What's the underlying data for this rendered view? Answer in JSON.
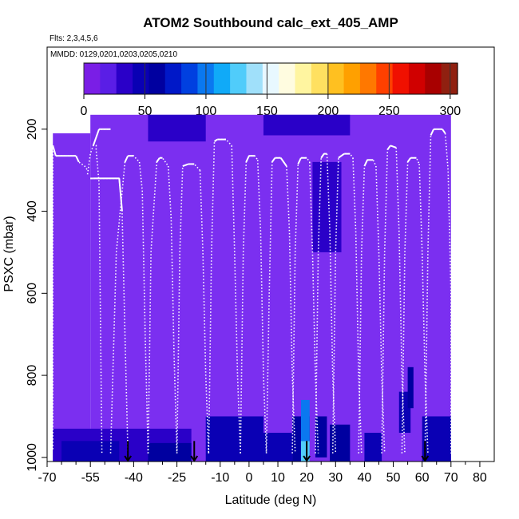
{
  "chart_data": {
    "type": "heatmap",
    "title": "ATOM2 Southbound calc_ext_405_AMP",
    "subtitle_flights": "Flts: 2,3,4,5,6",
    "subtitle_dates": "MMDD: 0129,0201,0203,0205,0210",
    "xlabel": "Latitude (deg N)",
    "ylabel": "PSXC (mbar)",
    "xlim": [
      -70,
      85
    ],
    "ylim": [
      1010,
      0
    ],
    "y_reversed": true,
    "x_ticks": [
      -70,
      -55,
      -40,
      -25,
      -10,
      0,
      10,
      20,
      30,
      40,
      50,
      60,
      70,
      80
    ],
    "x_tick_labels": [
      "-70",
      "-55",
      "-40",
      "-25",
      "-10",
      "0",
      "10",
      "20",
      "30",
      "40",
      "50",
      "60",
      "70",
      "80"
    ],
    "x_minor_ticks": [
      -65,
      -60,
      -50,
      -45,
      -35,
      -30,
      -20,
      -15,
      -5,
      5,
      15,
      25,
      35,
      45,
      55,
      65,
      75
    ],
    "y_ticks": [
      200,
      400,
      600,
      800,
      1000
    ],
    "y_tick_labels": [
      "200",
      "400",
      "600",
      "800",
      "1000"
    ],
    "colorbar": {
      "min": 0,
      "max": 306,
      "ticks": [
        0,
        50,
        100,
        150,
        200,
        250,
        300
      ],
      "tick_labels": [
        "0",
        "50",
        "100",
        "150",
        "200",
        "250",
        "300"
      ],
      "colors": [
        "#7a1ee6",
        "#5a1ee6",
        "#2a00c8",
        "#0a00b4",
        "#0000a0",
        "#0018c8",
        "#0040e0",
        "#0a78f0",
        "#10aaf8",
        "#50ccfa",
        "#a0e0fa",
        "#e8f8ff",
        "#fffce0",
        "#fff5a0",
        "#ffe060",
        "#ffc020",
        "#ffa000",
        "#ff7800",
        "#ff4000",
        "#f01000",
        "#d00000",
        "#a80000",
        "#902010"
      ]
    },
    "background_color": "#7b2ff0",
    "shade_regions": [
      {
        "x": [
          -68,
          -55
        ],
        "p": [
          210,
          1010
        ],
        "v": 20
      },
      {
        "x": [
          -55,
          70
        ],
        "p": [
          165,
          1010
        ],
        "v": 20
      },
      {
        "x": [
          -35,
          -15
        ],
        "p": [
          165,
          230
        ],
        "v": 35
      },
      {
        "x": [
          5,
          35
        ],
        "p": [
          165,
          215
        ],
        "v": 30
      },
      {
        "x": [
          22,
          32
        ],
        "p": [
          280,
          500
        ],
        "v": 28
      },
      {
        "x": [
          -68,
          -20
        ],
        "p": [
          930,
          1010
        ],
        "v": 35
      },
      {
        "x": [
          -65,
          -45
        ],
        "p": [
          960,
          1010
        ],
        "v": 50
      },
      {
        "x": [
          -35,
          -20
        ],
        "p": [
          965,
          1010
        ],
        "v": 55
      },
      {
        "x": [
          -15,
          5
        ],
        "p": [
          900,
          1010
        ],
        "v": 40
      },
      {
        "x": [
          5,
          15
        ],
        "p": [
          940,
          1010
        ],
        "v": 50
      },
      {
        "x": [
          15,
          21
        ],
        "p": [
          900,
          1010
        ],
        "v": 60
      },
      {
        "x": [
          18,
          21
        ],
        "p": [
          860,
          960
        ],
        "v": 105
      },
      {
        "x": [
          18,
          21
        ],
        "p": [
          960,
          1010
        ],
        "v": 120
      },
      {
        "x": [
          23,
          27
        ],
        "p": [
          900,
          1000
        ],
        "v": 60
      },
      {
        "x": [
          28,
          35
        ],
        "p": [
          920,
          1010
        ],
        "v": 55
      },
      {
        "x": [
          40,
          46
        ],
        "p": [
          940,
          1010
        ],
        "v": 40
      },
      {
        "x": [
          52,
          56
        ],
        "p": [
          840,
          940
        ],
        "v": 45
      },
      {
        "x": [
          55,
          57
        ],
        "p": [
          780,
          880
        ],
        "v": 55
      },
      {
        "x": [
          60,
          70
        ],
        "p": [
          900,
          1010
        ],
        "v": 40
      }
    ],
    "flight_profiles": [
      {
        "x": [
          -68,
          -68,
          -67,
          -63,
          -60,
          -59,
          -57,
          -56
        ],
        "p": [
          980,
          240,
          265,
          265,
          265,
          280,
          290,
          300
        ],
        "solid": [
          1,
          2,
          3,
          4
        ]
      },
      {
        "x": [
          -56,
          -55,
          -54,
          -53,
          -53,
          -52,
          -51
        ],
        "p": [
          310,
          260,
          240,
          240,
          250,
          330,
          990
        ],
        "solid": []
      },
      {
        "x": [
          -54,
          -52,
          -48,
          -48
        ],
        "p": [
          240,
          200,
          200,
          200
        ],
        "solid": [
          0,
          1,
          2
        ]
      },
      {
        "x": [
          -55,
          -54,
          -45,
          -44,
          -43,
          -42
        ],
        "p": [
          320,
          320,
          320,
          400,
          700,
          990
        ],
        "solid": [
          0,
          1,
          2
        ]
      },
      {
        "x": [
          -48,
          -46,
          -43,
          -42,
          -40,
          -38
        ],
        "p": [
          990,
          500,
          280,
          265,
          265,
          280
        ],
        "solid": [
          2,
          3
        ]
      },
      {
        "x": [
          -38,
          -37,
          -36,
          -35
        ],
        "p": [
          280,
          350,
          700,
          990
        ],
        "solid": []
      },
      {
        "x": [
          -35,
          -34,
          -32,
          -31,
          -30,
          -28
        ],
        "p": [
          990,
          500,
          280,
          270,
          270,
          290
        ],
        "solid": [
          2,
          3
        ]
      },
      {
        "x": [
          -28,
          -27,
          -26,
          -25
        ],
        "p": [
          290,
          420,
          750,
          990
        ],
        "solid": []
      },
      {
        "x": [
          -25,
          -24,
          -23,
          -21,
          -19,
          -17
        ],
        "p": [
          990,
          500,
          290,
          285,
          285,
          300
        ],
        "solid": [
          2,
          3
        ]
      },
      {
        "x": [
          -17,
          -16,
          -15,
          -14
        ],
        "p": [
          300,
          500,
          800,
          990
        ],
        "solid": []
      },
      {
        "x": [
          -14,
          -13,
          -12,
          -11,
          -8,
          -6
        ],
        "p": [
          990,
          500,
          230,
          225,
          225,
          240
        ],
        "solid": [
          2,
          3
        ]
      },
      {
        "x": [
          -6,
          -5,
          -4,
          -3
        ],
        "p": [
          240,
          500,
          800,
          990
        ],
        "solid": []
      },
      {
        "x": [
          -3,
          -2,
          -1,
          0,
          2,
          3
        ],
        "p": [
          990,
          500,
          280,
          265,
          265,
          275
        ],
        "solid": [
          2,
          3
        ]
      },
      {
        "x": [
          3,
          4,
          5,
          6
        ],
        "p": [
          275,
          450,
          800,
          990
        ],
        "solid": []
      },
      {
        "x": [
          6,
          7,
          8,
          9,
          11,
          13
        ],
        "p": [
          990,
          600,
          280,
          270,
          270,
          290
        ],
        "solid": [
          2,
          3,
          4
        ]
      },
      {
        "x": [
          13,
          14,
          15,
          16
        ],
        "p": [
          290,
          450,
          800,
          990
        ],
        "solid": []
      },
      {
        "x": [
          15,
          16,
          17,
          18,
          20,
          21
        ],
        "p": [
          990,
          500,
          285,
          270,
          270,
          280
        ],
        "solid": [
          2,
          3
        ]
      },
      {
        "x": [
          21,
          22,
          23,
          24
        ],
        "p": [
          280,
          500,
          800,
          990
        ],
        "solid": []
      },
      {
        "x": [
          23,
          24,
          25,
          26,
          27
        ],
        "p": [
          990,
          500,
          270,
          260,
          260
        ],
        "solid": [
          2,
          3
        ]
      },
      {
        "x": [
          27,
          28,
          29,
          30
        ],
        "p": [
          260,
          450,
          800,
          990
        ],
        "solid": []
      },
      {
        "x": [
          29,
          30,
          31,
          33,
          35,
          36
        ],
        "p": [
          990,
          500,
          270,
          260,
          260,
          270
        ],
        "solid": [
          2,
          3
        ]
      },
      {
        "x": [
          36,
          37,
          38,
          39
        ],
        "p": [
          270,
          450,
          800,
          990
        ],
        "solid": []
      },
      {
        "x": [
          38,
          39,
          40,
          41,
          43,
          44
        ],
        "p": [
          990,
          500,
          290,
          275,
          275,
          290
        ],
        "solid": [
          2,
          3
        ]
      },
      {
        "x": [
          44,
          45,
          46,
          47
        ],
        "p": [
          290,
          500,
          800,
          990
        ],
        "solid": []
      },
      {
        "x": [
          46,
          47,
          48,
          49,
          51
        ],
        "p": [
          990,
          500,
          250,
          240,
          245
        ],
        "solid": [
          2,
          3
        ]
      },
      {
        "x": [
          51,
          52,
          53,
          54
        ],
        "p": [
          245,
          450,
          800,
          990
        ],
        "solid": []
      },
      {
        "x": [
          53,
          54,
          55,
          56,
          58,
          59
        ],
        "p": [
          990,
          500,
          280,
          270,
          270,
          285
        ],
        "solid": [
          2,
          3
        ]
      },
      {
        "x": [
          59,
          60,
          61,
          62
        ],
        "p": [
          285,
          500,
          800,
          990
        ],
        "solid": []
      },
      {
        "x": [
          61,
          62,
          63,
          64,
          67,
          68
        ],
        "p": [
          990,
          500,
          215,
          200,
          200,
          210
        ],
        "solid": [
          2,
          3,
          4
        ]
      },
      {
        "x": [
          68,
          69,
          70,
          70
        ],
        "p": [
          210,
          300,
          600,
          990
        ],
        "solid": []
      }
    ],
    "arrows": [
      -42,
      -19,
      20,
      61
    ],
    "arrow_p": [
      960,
      1010
    ]
  }
}
